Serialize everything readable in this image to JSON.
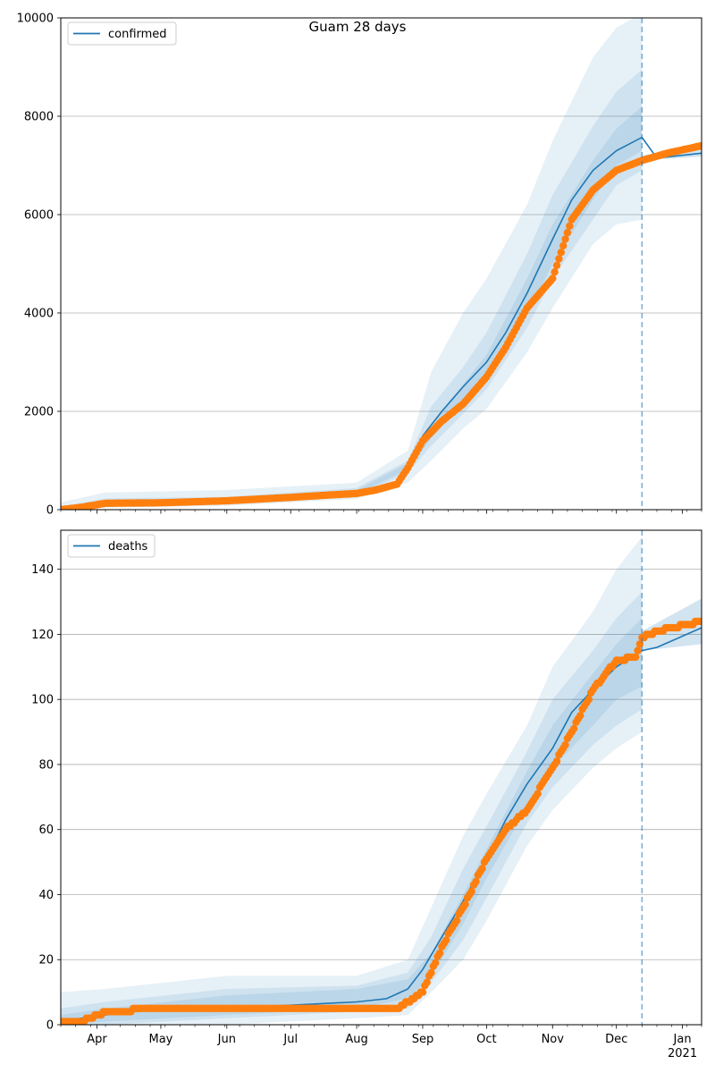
{
  "figure": {
    "title": "Guam 28 days",
    "colors": {
      "model": "#1f77b4",
      "observed": "#ff7f0e",
      "band": "#1f77b4",
      "grid": "#b0b0b0",
      "forecast_line": "#1f77b4"
    }
  },
  "chart_data": [
    {
      "type": "line",
      "title": "",
      "series": [
        {
          "name": "confirmed",
          "x": [
            "2020-03-15",
            "2020-03-25",
            "2020-04-05",
            "2020-05-01",
            "2020-06-01",
            "2020-07-01",
            "2020-07-20",
            "2020-08-01",
            "2020-08-10",
            "2020-08-20",
            "2020-08-25",
            "2020-09-01",
            "2020-09-10",
            "2020-09-20",
            "2020-10-01",
            "2020-10-10",
            "2020-10-20",
            "2020-11-01",
            "2020-11-10",
            "2020-11-20",
            "2020-12-01",
            "2020-12-13",
            "2020-12-20",
            "2021-01-10"
          ],
          "values": [
            0,
            60,
            140,
            140,
            180,
            250,
            300,
            350,
            420,
            530,
            900,
            1500,
            2000,
            2500,
            3000,
            3600,
            4400,
            5500,
            6300,
            6900,
            7300,
            7570,
            7150,
            7250
          ]
        }
      ],
      "observed": {
        "x": [
          "2020-03-15",
          "2020-03-25",
          "2020-04-05",
          "2020-05-01",
          "2020-06-01",
          "2020-07-01",
          "2020-07-20",
          "2020-08-01",
          "2020-08-10",
          "2020-08-20",
          "2020-08-25",
          "2020-09-01",
          "2020-09-10",
          "2020-09-20",
          "2020-10-01",
          "2020-10-10",
          "2020-10-20",
          "2020-11-01",
          "2020-11-10",
          "2020-11-20",
          "2020-12-01",
          "2020-12-13",
          "2020-12-25",
          "2021-01-10"
        ],
        "values": [
          0,
          50,
          130,
          140,
          180,
          250,
          300,
          330,
          400,
          520,
          850,
          1400,
          1800,
          2150,
          2700,
          3300,
          4100,
          4700,
          5900,
          6500,
          6900,
          7100,
          7250,
          7400
        ]
      },
      "bands": {
        "x": [
          "2020-03-15",
          "2020-04-05",
          "2020-06-01",
          "2020-08-01",
          "2020-08-25",
          "2020-09-05",
          "2020-09-20",
          "2020-10-01",
          "2020-10-20",
          "2020-11-01",
          "2020-11-20",
          "2020-12-01",
          "2020-12-13"
        ],
        "outer_low": [
          0,
          40,
          80,
          220,
          550,
          1000,
          1650,
          2050,
          3200,
          4100,
          5400,
          5800,
          5900
        ],
        "outer_high": [
          150,
          350,
          400,
          550,
          1200,
          2800,
          4000,
          4700,
          6200,
          7500,
          9200,
          9800,
          10100
        ],
        "inner_low": [
          0,
          80,
          120,
          280,
          750,
          1300,
          1950,
          2450,
          3700,
          4700,
          5900,
          6600,
          6900
        ],
        "inner_high": [
          60,
          230,
          260,
          440,
          1000,
          2100,
          2900,
          3600,
          5200,
          6400,
          7800,
          8500,
          8950
        ],
        "core_low": [
          0,
          110,
          150,
          310,
          820,
          1450,
          2200,
          2700,
          3950,
          5000,
          6300,
          7000,
          7300
        ],
        "core_high": [
          30,
          170,
          220,
          400,
          950,
          1750,
          2550,
          3150,
          4700,
          5800,
          7100,
          7750,
          8200
        ]
      },
      "after_bands": {
        "x": [
          "2020-12-13",
          "2021-01-10"
        ],
        "low": [
          7100,
          7180
        ],
        "high": [
          7200,
          7420
        ]
      },
      "legend": "top-left",
      "legend_entry": "confirmed",
      "ylim": [
        0,
        10000
      ],
      "xlim": [
        "2020-03-15",
        "2021-01-10"
      ],
      "yticks": [
        0,
        2000,
        4000,
        6000,
        8000,
        10000
      ],
      "grid": "y",
      "forecast_date": "2020-12-13"
    },
    {
      "type": "line",
      "title": "",
      "series": [
        {
          "name": "deaths",
          "x": [
            "2020-03-15",
            "2020-03-25",
            "2020-04-05",
            "2020-05-01",
            "2020-06-01",
            "2020-07-01",
            "2020-08-01",
            "2020-08-15",
            "2020-08-25",
            "2020-09-01",
            "2020-09-10",
            "2020-09-20",
            "2020-10-01",
            "2020-10-10",
            "2020-10-20",
            "2020-11-01",
            "2020-11-10",
            "2020-11-20",
            "2020-12-01",
            "2020-12-13",
            "2020-12-20",
            "2021-01-10"
          ],
          "values": [
            1,
            2,
            3,
            5,
            5,
            6,
            7,
            8,
            11,
            17,
            27,
            38,
            51,
            63,
            74,
            85,
            96,
            103,
            110,
            115,
            116,
            122
          ]
        }
      ],
      "observed": {
        "x": [
          "2020-03-15",
          "2020-03-25",
          "2020-04-05",
          "2020-05-01",
          "2020-06-01",
          "2020-07-01",
          "2020-08-01",
          "2020-08-20",
          "2020-08-25",
          "2020-09-01",
          "2020-09-10",
          "2020-09-20",
          "2020-10-01",
          "2020-10-10",
          "2020-10-20",
          "2020-11-01",
          "2020-11-10",
          "2020-11-20",
          "2020-12-01",
          "2020-12-10",
          "2020-12-13",
          "2020-12-20",
          "2021-01-10"
        ],
        "values": [
          1,
          1,
          4,
          5,
          5,
          5,
          5,
          5,
          7,
          10,
          24,
          36,
          51,
          60,
          66,
          79,
          90,
          103,
          112,
          113,
          119,
          121,
          124
        ]
      },
      "bands": {
        "x": [
          "2020-03-15",
          "2020-04-05",
          "2020-06-01",
          "2020-08-01",
          "2020-08-25",
          "2020-09-05",
          "2020-09-20",
          "2020-10-01",
          "2020-10-20",
          "2020-11-01",
          "2020-11-20",
          "2020-12-01",
          "2020-12-13"
        ],
        "outer_low": [
          0,
          0,
          0,
          2,
          3,
          10,
          20,
          32,
          55,
          66,
          79,
          85,
          90
        ],
        "outer_high": [
          10,
          11,
          15,
          15,
          20,
          36,
          58,
          71,
          92,
          110,
          127,
          140,
          150
        ],
        "inner_low": [
          0,
          0,
          2,
          4,
          5,
          13,
          26,
          39,
          62,
          73,
          86,
          92,
          97
        ],
        "inner_high": [
          5,
          7,
          11,
          12,
          16,
          27,
          48,
          61,
          84,
          100,
          115,
          125,
          133
        ],
        "core_low": [
          0,
          1,
          3,
          5,
          8,
          15,
          31,
          45,
          67,
          79,
          92,
          100,
          104
        ],
        "core_high": [
          3,
          5,
          9,
          11,
          14,
          22,
          40,
          54,
          78,
          92,
          108,
          117,
          125
        ]
      },
      "after_bands": {
        "x": [
          "2020-12-13",
          "2021-01-10"
        ],
        "low": [
          115,
          117
        ],
        "high": [
          121,
          131
        ]
      },
      "legend": "top-left",
      "legend_entry": "deaths",
      "ylim": [
        0,
        152
      ],
      "xlim": [
        "2020-03-15",
        "2021-01-10"
      ],
      "yticks": [
        0,
        20,
        40,
        60,
        80,
        100,
        120,
        140
      ],
      "grid": "y",
      "forecast_date": "2020-12-13",
      "xtick_labels": [
        {
          "date": "2020-04-01",
          "label": "Apr"
        },
        {
          "date": "2020-05-01",
          "label": "May"
        },
        {
          "date": "2020-06-01",
          "label": "Jun"
        },
        {
          "date": "2020-07-01",
          "label": "Jul"
        },
        {
          "date": "2020-08-01",
          "label": "Aug"
        },
        {
          "date": "2020-09-01",
          "label": "Sep"
        },
        {
          "date": "2020-10-01",
          "label": "Oct"
        },
        {
          "date": "2020-11-01",
          "label": "Nov"
        },
        {
          "date": "2020-12-01",
          "label": "Dec"
        },
        {
          "date": "2021-01-01",
          "label": "Jan"
        }
      ],
      "xtick_year": "2021"
    }
  ]
}
